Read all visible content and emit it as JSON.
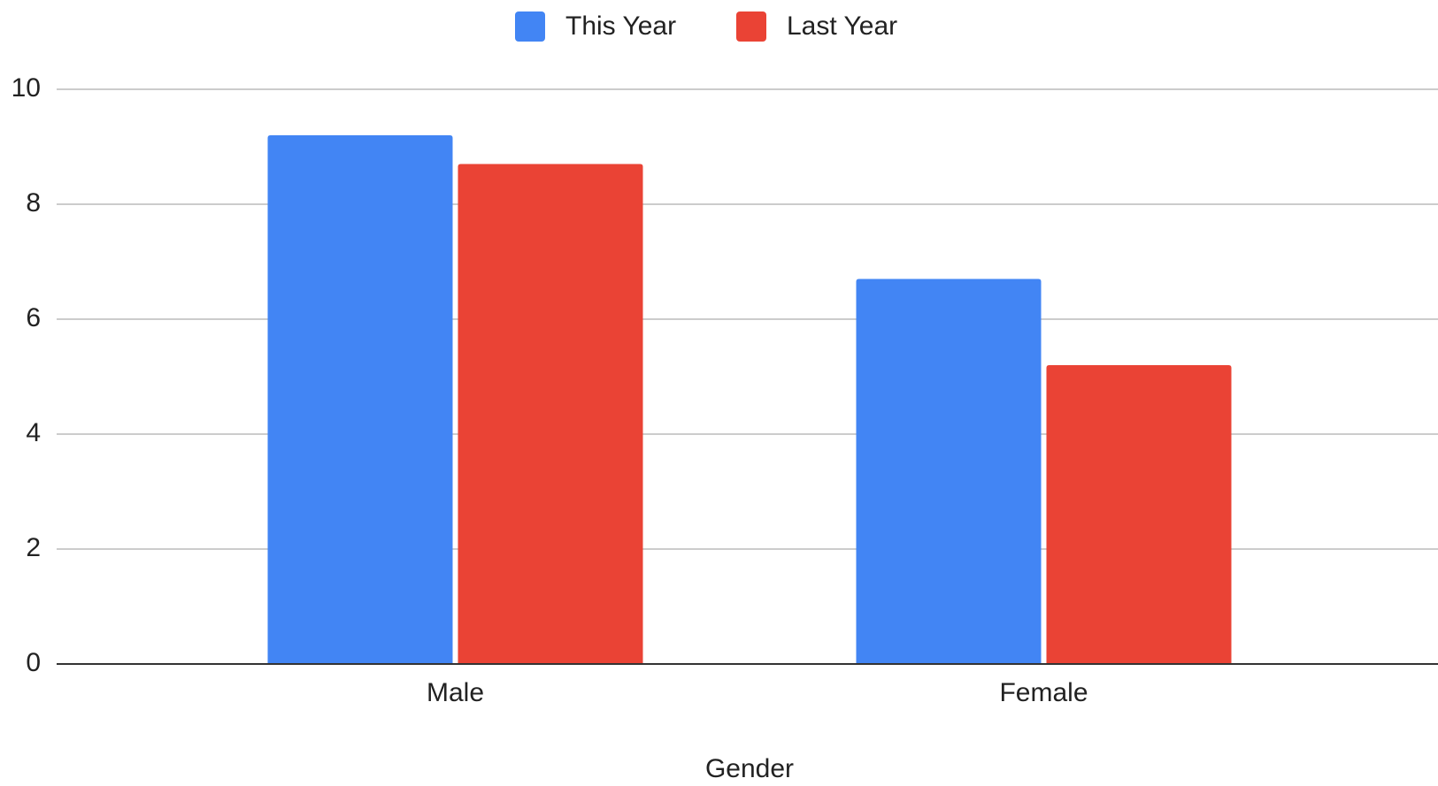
{
  "chart_data": {
    "type": "bar",
    "categories": [
      "Male",
      "Female"
    ],
    "x_label": "Gender",
    "series": [
      {
        "name": "This Year",
        "color": "#4285f4",
        "values": [
          9.2,
          6.7
        ]
      },
      {
        "name": "Last Year",
        "color": "#ea4335",
        "values": [
          8.7,
          5.2
        ]
      }
    ],
    "ylim": [
      0,
      10
    ],
    "yticks": [
      0,
      2,
      4,
      6,
      8,
      10
    ],
    "grid": true,
    "legend": "top"
  }
}
